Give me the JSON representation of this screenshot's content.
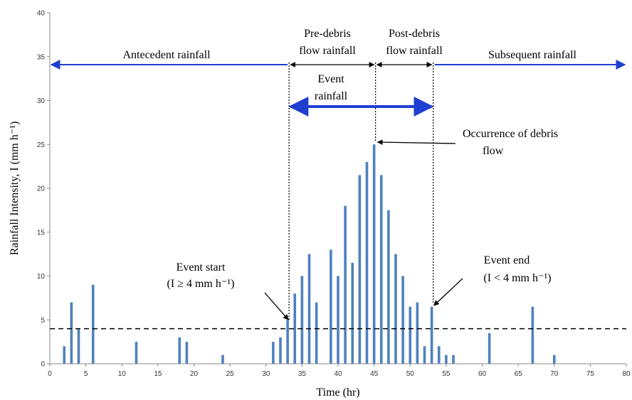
{
  "chart_data": {
    "type": "bar",
    "xlabel": "Time (hr)",
    "ylabel": "Rainfall Intensity, I (mm h⁻¹)",
    "xlim": [
      0,
      80
    ],
    "ylim": [
      0,
      40
    ],
    "xticks": [
      0,
      5,
      10,
      15,
      20,
      25,
      30,
      35,
      40,
      45,
      50,
      55,
      60,
      65,
      70,
      75,
      80
    ],
    "yticks": [
      0,
      5,
      10,
      15,
      20,
      25,
      30,
      35,
      40
    ],
    "grid": false,
    "legend": "none",
    "threshold": 4,
    "event_start": 33,
    "debris_flow": 45,
    "event_end": 53,
    "x": [
      2,
      3,
      4,
      6,
      12,
      18,
      19,
      24,
      31,
      32,
      33,
      34,
      35,
      36,
      37,
      39,
      40,
      41,
      42,
      43,
      44,
      45,
      46,
      47,
      48,
      49,
      50,
      51,
      52,
      53,
      54,
      55,
      56,
      61,
      67,
      70
    ],
    "values": [
      2,
      7,
      4,
      9,
      2.5,
      3,
      2.5,
      1,
      2.5,
      3,
      5,
      8,
      10,
      12.5,
      7,
      13,
      10,
      18,
      11.5,
      21.5,
      23,
      25,
      21.5,
      17.5,
      12.5,
      10,
      6.5,
      7,
      2,
      6.5,
      2,
      1,
      1,
      3.5,
      6.5,
      1
    ]
  },
  "annotations": {
    "antecedent": "Antecedent rainfall",
    "pre_debris_1": "Pre-debris",
    "pre_debris_2": "flow rainfall",
    "post_debris_1": "Post-debris",
    "post_debris_2": "flow rainfall",
    "subsequent": "Subsequent rainfall",
    "event_rainfall_1": "Event",
    "event_rainfall_2": "rainfall",
    "occurrence_1": "Occurrence of debris",
    "occurrence_2": "flow",
    "event_start_1": "Event start",
    "event_start_2": "(I ≥ 4 mm h⁻¹)",
    "event_end_1": "Event end",
    "event_end_2": "(I < 4 mm h⁻¹)"
  },
  "colors": {
    "bar": "#4f81bd",
    "period_arrow": "#1f3fd0",
    "threshold_line": "#000000"
  }
}
